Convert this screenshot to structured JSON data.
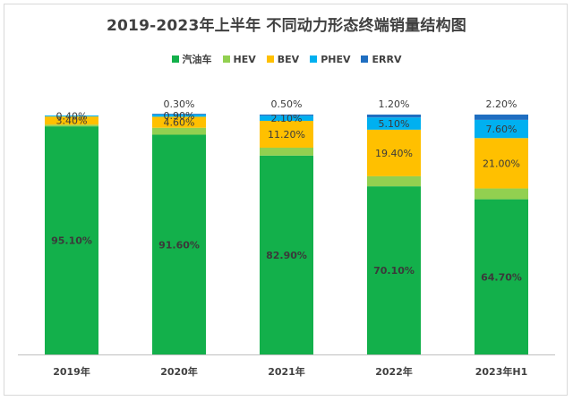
{
  "chart_data": {
    "type": "bar",
    "stacked": true,
    "title": "2019-2023年上半年 不同动力形态终端销量结构图",
    "categories": [
      "2019年",
      "2020年",
      "2021年",
      "2022年",
      "2023年H1"
    ],
    "series": [
      {
        "name": "汽油车",
        "color": "#13b04b",
        "values": [
          95.1,
          91.6,
          82.9,
          70.1,
          64.7
        ],
        "labels": [
          "95.10%",
          "91.60%",
          "82.90%",
          "70.10%",
          "64.70%"
        ]
      },
      {
        "name": "HEV",
        "color": "#92d050",
        "values": [
          0.7,
          2.9,
          3.3,
          4.2,
          4.5
        ],
        "labels": [
          "",
          "",
          "",
          "",
          ""
        ]
      },
      {
        "name": "BEV",
        "color": "#ffc000",
        "values": [
          3.4,
          4.6,
          11.2,
          19.4,
          21.0
        ],
        "labels": [
          "3.40%",
          "4.60%",
          "11.20%",
          "19.40%",
          "21.00%"
        ]
      },
      {
        "name": "PHEV",
        "color": "#00b0f0",
        "values": [
          0.4,
          0.9,
          2.1,
          5.1,
          7.6
        ],
        "labels": [
          "0.40%",
          "0.90%",
          "2.10%",
          "5.10%",
          "7.60%"
        ]
      },
      {
        "name": "ERRV",
        "color": "#1f6ec1",
        "values": [
          0.0,
          0.3,
          0.5,
          1.2,
          2.2
        ],
        "labels": [
          "",
          "0.30%",
          "0.50%",
          "1.20%",
          "2.20%"
        ]
      }
    ],
    "ylim": [
      0,
      100
    ],
    "legend_position": "top",
    "grid": false
  }
}
